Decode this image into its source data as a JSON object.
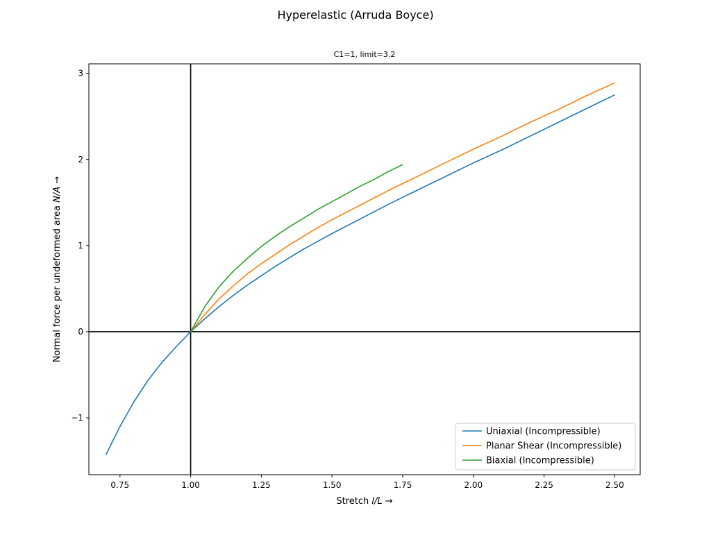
{
  "figure": {
    "suptitle": "Hyperelastic (Arruda Boyce)",
    "subtitle": "C1=1, limit=3.2"
  },
  "chart_data": {
    "type": "line",
    "title": "C1=1, limit=3.2",
    "xlabel_prefix": "Stretch ",
    "xlabel_var": "l/L",
    "xlabel_suffix": "  →",
    "ylabel_prefix": "Normal force per undeformed area ",
    "ylabel_var": "N/A",
    "ylabel_suffix": "  →",
    "xlim": [
      0.64,
      2.59
    ],
    "ylim": [
      -1.66,
      3.11
    ],
    "xticks": [
      0.75,
      1.0,
      1.25,
      1.5,
      1.75,
      2.0,
      2.25,
      2.5
    ],
    "xtick_labels": [
      "0.75",
      "1.00",
      "1.25",
      "1.50",
      "1.75",
      "2.00",
      "2.25",
      "2.50"
    ],
    "yticks": [
      -1,
      0,
      1,
      2,
      3
    ],
    "ytick_labels": [
      "−1",
      "0",
      "1",
      "2",
      "3"
    ],
    "reference_lines": {
      "x": 1.0,
      "y": 0.0,
      "color": "#000000"
    },
    "grid": false,
    "legend_position": "lower-right",
    "series": [
      {
        "name": "Uniaxial (Incompressible)",
        "color": "#1f77b4",
        "x": [
          0.7,
          0.75,
          0.8,
          0.85,
          0.9,
          0.95,
          1.0,
          1.05,
          1.1,
          1.15,
          1.2,
          1.25,
          1.3,
          1.35,
          1.4,
          1.45,
          1.5,
          1.6,
          1.7,
          1.8,
          1.9,
          2.0,
          2.1,
          2.2,
          2.3,
          2.4,
          2.5
        ],
        "y": [
          -1.43,
          -1.1,
          -0.81,
          -0.56,
          -0.35,
          -0.17,
          0.0,
          0.15,
          0.29,
          0.42,
          0.54,
          0.65,
          0.76,
          0.86,
          0.96,
          1.05,
          1.14,
          1.31,
          1.48,
          1.64,
          1.8,
          1.96,
          2.11,
          2.27,
          2.43,
          2.59,
          2.75
        ]
      },
      {
        "name": "Planar Shear (Incompressible)",
        "color": "#ff7f0e",
        "x": [
          1.0,
          1.05,
          1.1,
          1.15,
          1.2,
          1.25,
          1.3,
          1.35,
          1.4,
          1.45,
          1.5,
          1.6,
          1.7,
          1.8,
          1.9,
          2.0,
          2.1,
          2.2,
          2.3,
          2.4,
          2.5
        ],
        "y": [
          0.0,
          0.2,
          0.38,
          0.53,
          0.67,
          0.79,
          0.9,
          1.01,
          1.11,
          1.21,
          1.3,
          1.47,
          1.64,
          1.8,
          1.96,
          2.12,
          2.27,
          2.43,
          2.58,
          2.74,
          2.89
        ]
      },
      {
        "name": "Biaxial (Incompressible)",
        "color": "#2ca02c",
        "x": [
          1.0,
          1.05,
          1.1,
          1.15,
          1.2,
          1.25,
          1.3,
          1.35,
          1.4,
          1.45,
          1.5,
          1.55,
          1.6,
          1.65,
          1.7,
          1.75
        ],
        "y": [
          0.0,
          0.29,
          0.52,
          0.7,
          0.85,
          0.99,
          1.11,
          1.22,
          1.32,
          1.42,
          1.51,
          1.6,
          1.69,
          1.77,
          1.86,
          1.94
        ]
      }
    ]
  }
}
